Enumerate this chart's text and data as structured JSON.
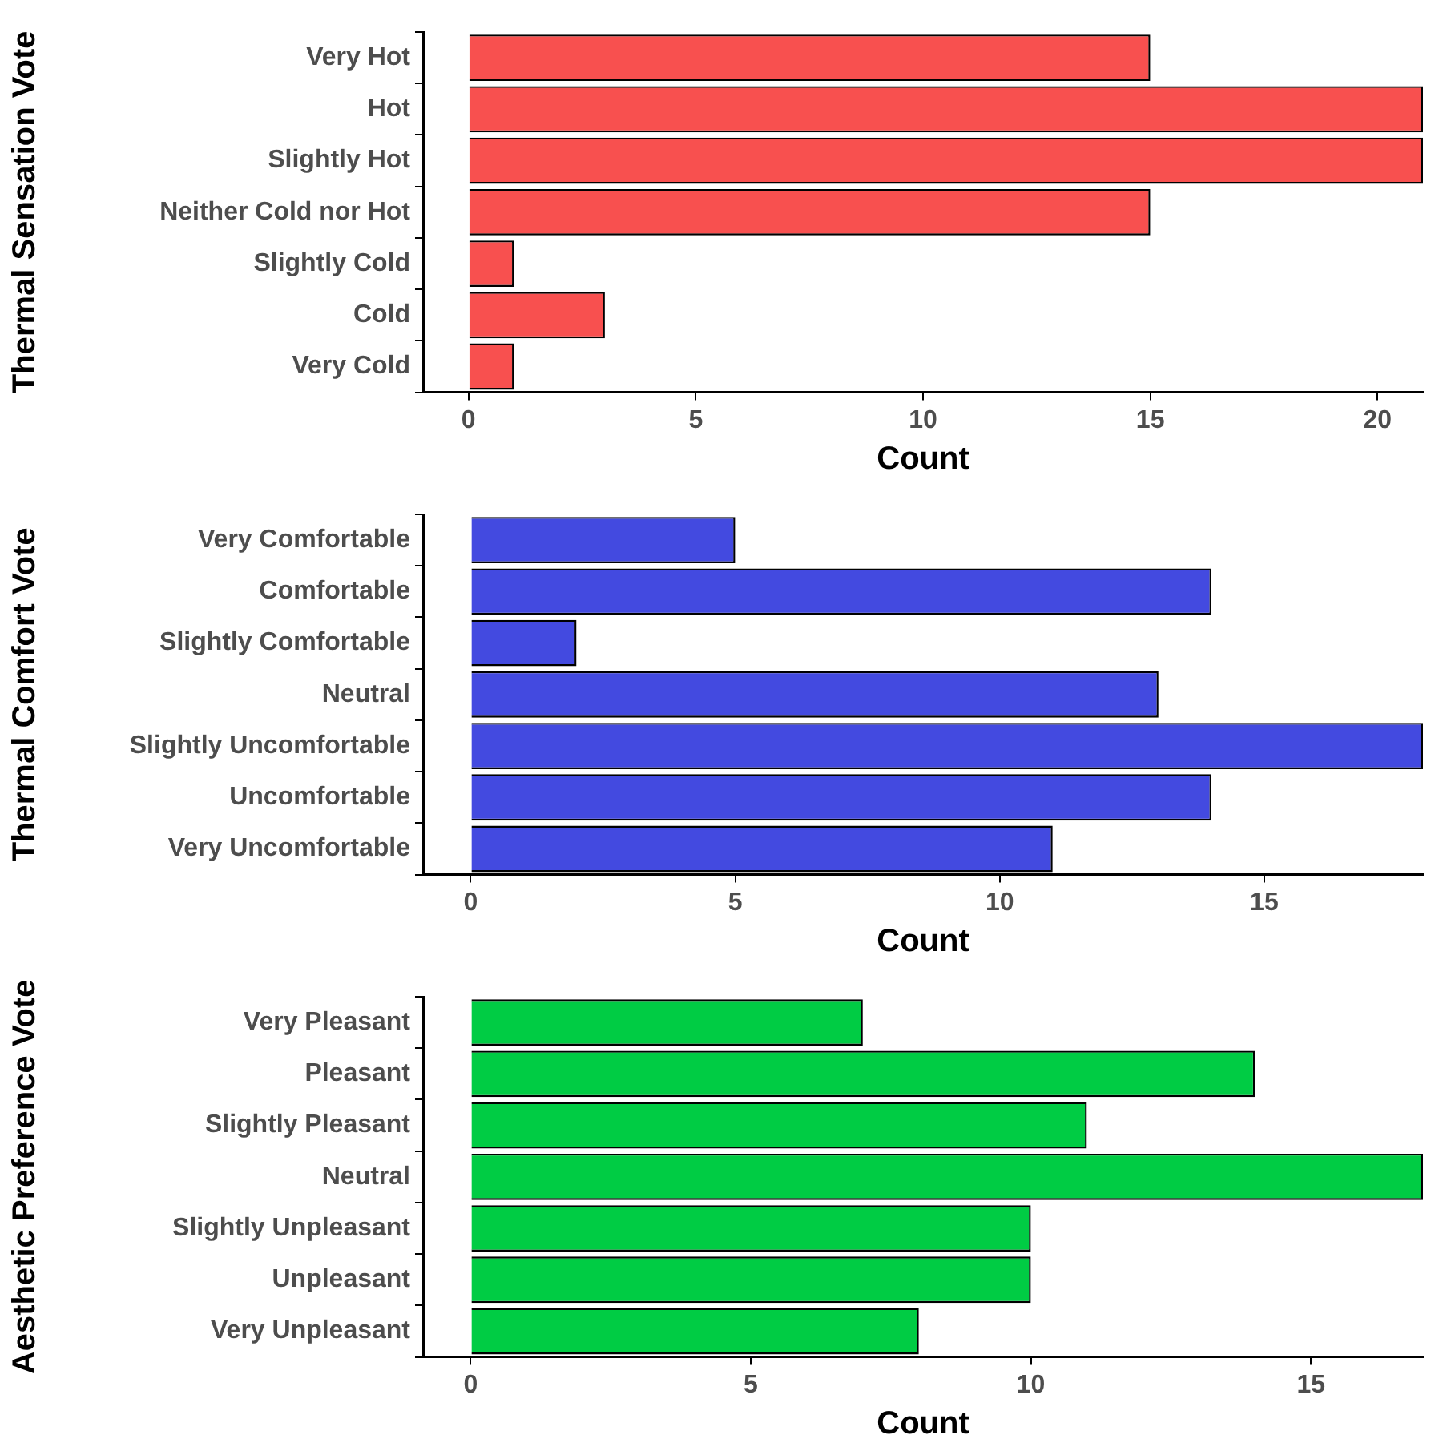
{
  "chart_data": [
    {
      "type": "bar",
      "orientation": "horizontal",
      "ylabel": "Thermal Sensation Vote",
      "xlabel": "Count",
      "categories": [
        "Very Hot",
        "Hot",
        "Slightly Hot",
        "Neither Cold nor Hot",
        "Slightly Cold",
        "Cold",
        "Very Cold"
      ],
      "values": [
        15,
        21,
        21,
        15,
        1,
        3,
        1
      ],
      "color": "#f8504f",
      "xlim": [
        -1,
        21
      ],
      "xticks": [
        0,
        5,
        10,
        15,
        20
      ],
      "grid": false,
      "legend": false
    },
    {
      "type": "bar",
      "orientation": "horizontal",
      "ylabel": "Thermal Comfort Vote",
      "xlabel": "Count",
      "categories": [
        "Very Comfortable",
        "Comfortable",
        "Slightly Comfortable",
        "Neutral",
        "Slightly Uncomfortable",
        "Uncomfortable",
        "Very Uncomfortable"
      ],
      "values": [
        5,
        14,
        2,
        13,
        18,
        14,
        11
      ],
      "color": "#434ae0",
      "xlim": [
        -0.9,
        18
      ],
      "xticks": [
        0,
        5,
        10,
        15
      ],
      "grid": false,
      "legend": false
    },
    {
      "type": "bar",
      "orientation": "horizontal",
      "ylabel": "Aesthetic Preference Vote",
      "xlabel": "Count",
      "categories": [
        "Very Pleasant",
        "Pleasant",
        "Slightly Pleasant",
        "Neutral",
        "Slightly Unpleasant",
        "Unpleasant",
        "Very Unpleasant"
      ],
      "values": [
        7,
        14,
        11,
        17,
        10,
        10,
        8
      ],
      "color": "#00cc44",
      "xlim": [
        -0.85,
        17
      ],
      "xticks": [
        0,
        5,
        10,
        15
      ],
      "grid": false,
      "legend": false
    }
  ]
}
